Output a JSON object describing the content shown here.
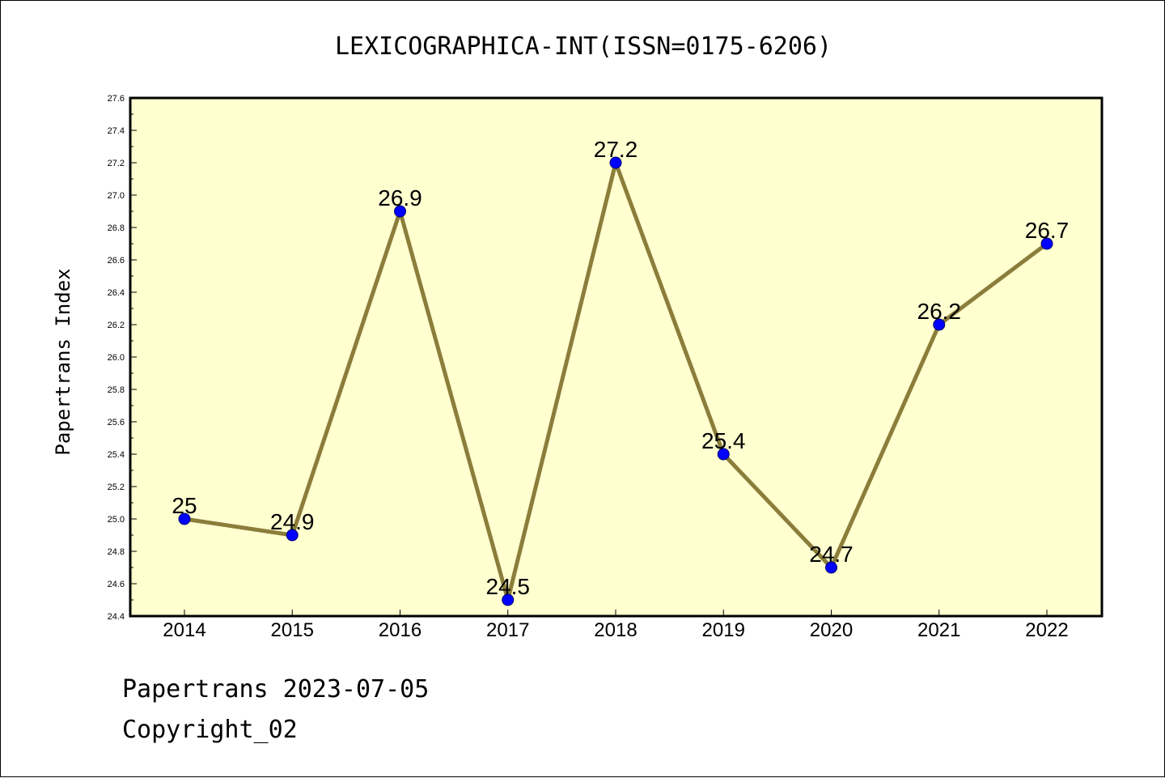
{
  "chart_data": {
    "type": "line",
    "title": "LEXICOGRAPHICA-INT(ISSN=0175-6206)",
    "xlabel": "",
    "ylabel": "Papertrans Index",
    "x": [
      "2014",
      "2015",
      "2016",
      "2017",
      "2018",
      "2019",
      "2020",
      "2021",
      "2022"
    ],
    "series": [
      {
        "values": [
          25,
          24.9,
          26.9,
          24.5,
          27.2,
          25.4,
          24.7,
          26.2,
          26.7
        ],
        "labels": [
          "25",
          "24.9",
          "26.9",
          "24.5",
          "27.2",
          "25.4",
          "24.7",
          "26.2",
          "26.7"
        ]
      }
    ],
    "ylim": [
      24.4,
      27.6
    ],
    "yticks": [
      "24.4",
      "24.6",
      "24.8",
      "25.0",
      "25.2",
      "25.4",
      "25.6",
      "25.8",
      "26.0",
      "26.2",
      "26.4",
      "26.6",
      "26.8",
      "27.0",
      "27.2",
      "27.4",
      "27.6"
    ],
    "grid": false,
    "legend": "none",
    "colors": {
      "plot_background": "#ffffd0",
      "line": "#8b7d3a",
      "marker": "#0000ff"
    }
  },
  "footer": {
    "line1": "Papertrans 2023-07-05",
    "line2": "Copyright_02"
  }
}
